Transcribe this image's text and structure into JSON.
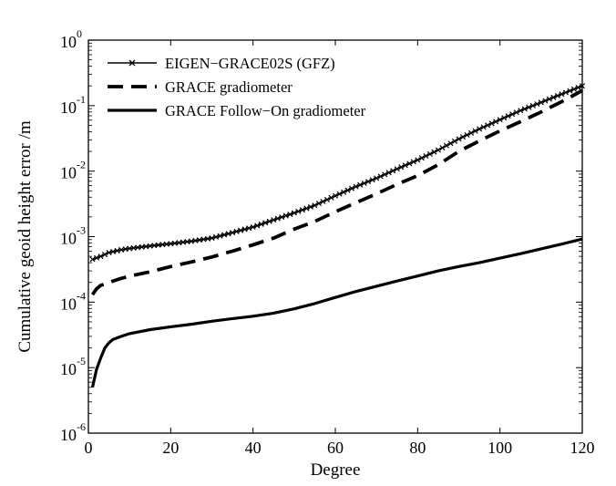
{
  "chart_data": {
    "type": "line",
    "title": "",
    "xlabel": "Degree",
    "ylabel": "Cumulative geoid height error /m",
    "xlim": [
      0,
      120
    ],
    "ylim": [
      1e-06,
      1
    ],
    "yscale": "log",
    "grid": false,
    "legend_position": "top-left",
    "x_ticks": [
      0,
      20,
      40,
      60,
      80,
      100,
      120
    ],
    "y_ticks": [
      {
        "value": 1e-06,
        "base": "10",
        "exp": "-6"
      },
      {
        "value": 1e-05,
        "base": "10",
        "exp": "-5"
      },
      {
        "value": 0.0001,
        "base": "10",
        "exp": "-4"
      },
      {
        "value": 0.001,
        "base": "10",
        "exp": "-3"
      },
      {
        "value": 0.01,
        "base": "10",
        "exp": "-2"
      },
      {
        "value": 0.1,
        "base": "10",
        "exp": "-1"
      },
      {
        "value": 1,
        "base": "10",
        "exp": "0"
      }
    ],
    "series": [
      {
        "name": "EIGEN−GRACE02S (GFZ)",
        "style": "solid-x",
        "color": "#000000",
        "x": [
          1,
          3,
          5,
          8,
          10,
          15,
          20,
          25,
          30,
          35,
          40,
          45,
          50,
          55,
          60,
          65,
          70,
          75,
          80,
          85,
          90,
          95,
          100,
          105,
          110,
          115,
          120
        ],
        "y": [
          0.00045,
          0.0005,
          0.00057,
          0.00063,
          0.00066,
          0.00072,
          0.00078,
          0.00085,
          0.00095,
          0.00115,
          0.0014,
          0.0018,
          0.0023,
          0.003,
          0.0042,
          0.0058,
          0.0078,
          0.0108,
          0.0148,
          0.021,
          0.031,
          0.044,
          0.061,
          0.084,
          0.112,
          0.15,
          0.2
        ]
      },
      {
        "name": "GRACE gradiometer",
        "style": "dashed",
        "color": "#000000",
        "x": [
          1,
          2,
          3,
          5,
          8,
          10,
          15,
          20,
          25,
          30,
          35,
          40,
          45,
          50,
          55,
          60,
          65,
          70,
          75,
          80,
          85,
          90,
          95,
          100,
          105,
          110,
          115,
          120
        ],
        "y": [
          0.00013,
          0.00016,
          0.00018,
          0.0002,
          0.00023,
          0.00025,
          0.00029,
          0.00035,
          0.00041,
          0.00049,
          0.0006,
          0.00075,
          0.00095,
          0.0013,
          0.0017,
          0.0024,
          0.0033,
          0.0045,
          0.0063,
          0.0085,
          0.0125,
          0.02,
          0.029,
          0.041,
          0.057,
          0.08,
          0.115,
          0.17
        ]
      },
      {
        "name": "GRACE Follow−On gradiometer",
        "style": "solid",
        "color": "#000000",
        "x": [
          1,
          2,
          3,
          4,
          5,
          6,
          8,
          10,
          15,
          20,
          25,
          30,
          35,
          40,
          45,
          50,
          55,
          60,
          65,
          70,
          75,
          80,
          85,
          90,
          95,
          100,
          105,
          110,
          115,
          120
        ],
        "y": [
          5e-06,
          9.5e-06,
          1.4e-05,
          2e-05,
          2.4e-05,
          2.7e-05,
          3e-05,
          3.3e-05,
          3.8e-05,
          4.2e-05,
          4.6e-05,
          5.1e-05,
          5.6e-05,
          6.1e-05,
          6.8e-05,
          7.9e-05,
          9.5e-05,
          0.000118,
          0.000145,
          0.000175,
          0.00021,
          0.00025,
          0.0003,
          0.00035,
          0.0004,
          0.00047,
          0.00055,
          0.00065,
          0.00077,
          0.00092
        ]
      }
    ]
  }
}
